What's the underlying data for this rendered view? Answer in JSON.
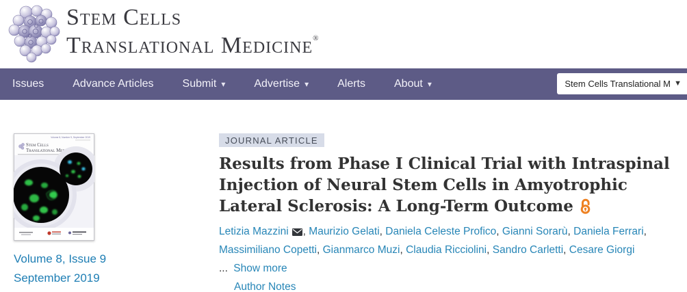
{
  "brand": {
    "line1": "Stem Cells",
    "line2": "Translational Medicine",
    "registered_mark": "®"
  },
  "nav": {
    "items": [
      {
        "label": "Issues",
        "dropdown": false
      },
      {
        "label": "Advance Articles",
        "dropdown": false
      },
      {
        "label": "Submit",
        "dropdown": true
      },
      {
        "label": "Advertise",
        "dropdown": true
      },
      {
        "label": "Alerts",
        "dropdown": false
      },
      {
        "label": "About",
        "dropdown": true
      }
    ],
    "search_scope_value": "Stem Cells Translational M"
  },
  "issue": {
    "cover": {
      "top_right_text": "Volume 8, Number 9, September 2019",
      "masthead_line1": "Stem Cells",
      "masthead_line2": "Translational Medicine"
    },
    "volume_link": "Volume 8, Issue 9",
    "date_link": "September 2019"
  },
  "article": {
    "type_badge": "JOURNAL ARTICLE",
    "title": "Results from Phase I Clinical Trial with Intraspinal Injection of Neural Stem Cells in Amyotrophic Lateral Sclerosis: A Long-Term Outcome",
    "title_lines": [
      "Results from Phase I Clinical Trial with Intraspinal",
      "Injection of Neural Stem Cells in Amyotrophic",
      "Lateral Sclerosis: A Long-Term Outcome"
    ],
    "authors": [
      {
        "name": "Letizia Mazzini",
        "corresponding": true
      },
      {
        "name": "Maurizio Gelati",
        "corresponding": false
      },
      {
        "name": "Daniela Celeste Profico",
        "corresponding": false
      },
      {
        "name": "Gianni Sorarù",
        "corresponding": false
      },
      {
        "name": "Daniela Ferrari",
        "corresponding": false
      },
      {
        "name": "Massimiliano Copetti",
        "corresponding": false
      },
      {
        "name": "Gianmarco Muzi",
        "corresponding": false
      },
      {
        "name": "Claudia Ricciolini",
        "corresponding": false
      },
      {
        "name": "Sandro Carletti",
        "corresponding": false
      },
      {
        "name": "Cesare Giorgi",
        "corresponding": false
      }
    ],
    "ellipsis": "...",
    "show_more_label": "Show more",
    "author_notes_label": "Author Notes"
  },
  "colors": {
    "nav_bg": "#5d5b86",
    "link_blue": "#2786b7",
    "issue_link_blue": "#1e7eb4",
    "badge_bg": "#d7dce8",
    "open_access_orange": "#ee8122",
    "title_text": "#333333"
  }
}
